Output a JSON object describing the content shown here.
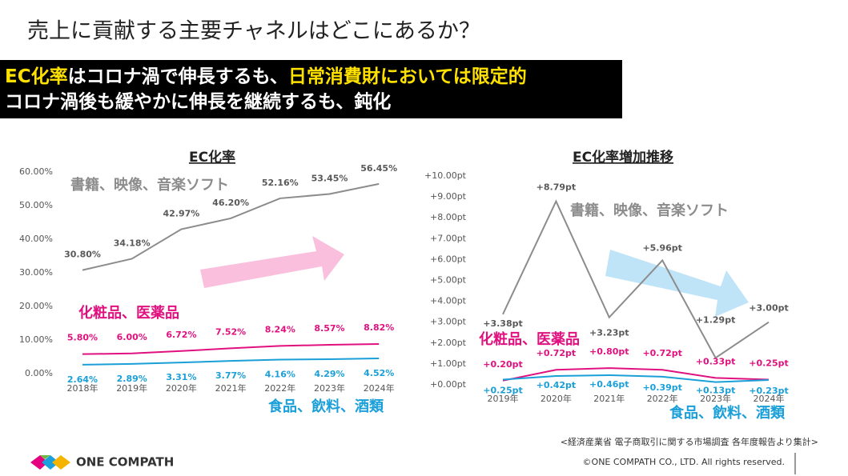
{
  "title": "売上に貢献する主要チャネルはどこにあるか？",
  "headline": {
    "line1": [
      "EC化率",
      "はコロナ渦で伸長するも、",
      "日常消費財においては限定的"
    ],
    "line2": "コロナ渦後も緩やかに伸長を継続するも、鈍化"
  },
  "source": "<経済産業省 電子商取引に関する市場調査 各年度報告より集計>",
  "logo": "ONE COMPATH",
  "copyright": "©ONE COMPATH CO., LTD. All rights reserved.",
  "chart_data": [
    {
      "type": "line",
      "title": "EC化率",
      "categories": [
        "2018年",
        "2019年",
        "2020年",
        "2021年",
        "2022年",
        "2023年",
        "2024年"
      ],
      "ylim": [
        0,
        60
      ],
      "yticks": [
        {
          "value": 0,
          "label": "0.00%"
        },
        {
          "value": 10,
          "label": "10.00%"
        },
        {
          "value": 20,
          "label": "20.00%"
        },
        {
          "value": 30,
          "label": "30.00%"
        },
        {
          "value": 40,
          "label": "40.00%"
        },
        {
          "value": 50,
          "label": "50.00%"
        },
        {
          "value": 60,
          "label": "60.00%"
        }
      ],
      "series": [
        {
          "name": "書籍、映像、音楽ソフト",
          "color": "#8c8c8c",
          "values": [
            30.8,
            34.18,
            42.97,
            46.2,
            52.16,
            53.45,
            56.45
          ],
          "value_labels": [
            "30.80%",
            "34.18%",
            "42.97%",
            "46.20%",
            "52.16%",
            "53.45%",
            "56.45%"
          ]
        },
        {
          "name": "化粧品、医薬品",
          "color": "#e0117f",
          "values": [
            5.8,
            6.0,
            6.72,
            7.52,
            8.24,
            8.57,
            8.82
          ],
          "value_labels": [
            "5.80%",
            "6.00%",
            "6.72%",
            "7.52%",
            "8.24%",
            "8.57%",
            "8.82%"
          ]
        },
        {
          "name": "食品、飲料、酒類",
          "color": "#1a9fd8",
          "values": [
            2.64,
            2.89,
            3.31,
            3.77,
            4.16,
            4.29,
            4.52
          ],
          "value_labels": [
            "2.64%",
            "2.89%",
            "3.31%",
            "3.77%",
            "4.16%",
            "4.29%",
            "4.52%"
          ]
        }
      ]
    },
    {
      "type": "line",
      "title": "EC化率増加推移",
      "categories": [
        "2019年",
        "2020年",
        "2021年",
        "2022年",
        "2023年",
        "2024年"
      ],
      "ylim": [
        0,
        10
      ],
      "yticks": [
        {
          "value": 0,
          "label": "+0.00pt"
        },
        {
          "value": 1,
          "label": "+1.00pt"
        },
        {
          "value": 2,
          "label": "+2.00pt"
        },
        {
          "value": 3,
          "label": "+3.00pt"
        },
        {
          "value": 4,
          "label": "+4.00pt"
        },
        {
          "value": 5,
          "label": "+5.00pt"
        },
        {
          "value": 6,
          "label": "+6.00pt"
        },
        {
          "value": 7,
          "label": "+7.00pt"
        },
        {
          "value": 8,
          "label": "+8.00pt"
        },
        {
          "value": 9,
          "label": "+9.00pt"
        },
        {
          "value": 10,
          "label": "+10.00pt"
        }
      ],
      "series": [
        {
          "name": "書籍、映像、音楽ソフト",
          "color": "#8c8c8c",
          "values": [
            3.38,
            8.79,
            3.23,
            5.96,
            1.29,
            3.0
          ],
          "value_labels": [
            "+3.38pt",
            "+8.79pt",
            "+3.23pt",
            "+5.96pt",
            "+1.29pt",
            "+3.00pt"
          ]
        },
        {
          "name": "化粧品、医薬品",
          "color": "#e0117f",
          "values": [
            0.2,
            0.72,
            0.8,
            0.72,
            0.33,
            0.25
          ],
          "value_labels": [
            "+0.20pt",
            "+0.72pt",
            "+0.80pt",
            "+0.72pt",
            "+0.33pt",
            "+0.25pt"
          ]
        },
        {
          "name": "食品、飲料、酒類",
          "color": "#1a9fd8",
          "values": [
            0.25,
            0.42,
            0.46,
            0.39,
            0.13,
            0.23
          ],
          "value_labels": [
            "+0.25pt",
            "+0.42pt",
            "+0.46pt",
            "+0.39pt",
            "+0.13pt",
            "+0.23pt"
          ]
        }
      ]
    }
  ]
}
